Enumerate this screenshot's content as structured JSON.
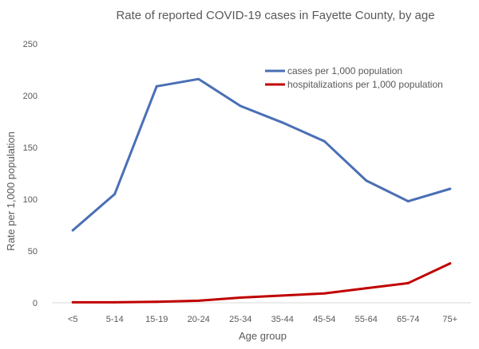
{
  "chart_data": {
    "type": "line",
    "title": "Rate of reported COVID-19 cases in Fayette County, by age",
    "xlabel": "Age group",
    "ylabel": "Rate per 1,000 population",
    "categories": [
      "<5",
      "5-14",
      "15-19",
      "20-24",
      "25-34",
      "35-44",
      "45-54",
      "55-64",
      "65-74",
      "75+"
    ],
    "ylim": [
      0,
      250
    ],
    "yticks": [
      0,
      50,
      100,
      150,
      200,
      250
    ],
    "grid": false,
    "legend_position": "top-right",
    "series": [
      {
        "name": "cases per 1,000 population",
        "color": "#4a6fb5",
        "values": [
          70,
          105,
          209,
          216,
          190,
          174,
          156,
          118,
          98,
          110
        ]
      },
      {
        "name": "hospitalizations per 1,000 population",
        "color": "#c00000",
        "values": [
          0.5,
          0.5,
          1,
          2,
          5,
          7,
          9,
          14,
          19,
          38
        ]
      }
    ]
  }
}
